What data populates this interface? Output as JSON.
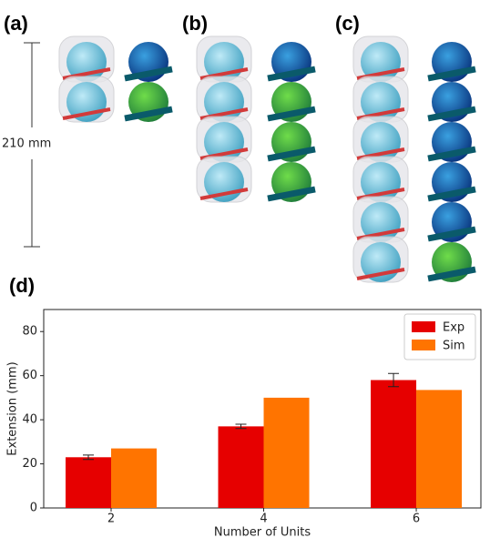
{
  "figure": {
    "panel_labels": [
      "(a)",
      "(b)",
      "(c)",
      "(d)"
    ],
    "scale_label": "210 mm"
  },
  "chart_data": {
    "type": "bar",
    "categories": [
      "2",
      "4",
      "6"
    ],
    "series": [
      {
        "name": "Exp",
        "color": "#e60000",
        "values": [
          23,
          37,
          58
        ],
        "errors": [
          1,
          1,
          3
        ]
      },
      {
        "name": "Sim",
        "color": "#ff7400",
        "values": [
          27,
          50,
          53.5
        ]
      }
    ],
    "x_label": "Number of Units",
    "y_label": "Extension (mm)",
    "ylim": [
      0,
      90
    ],
    "yticks": [
      0,
      20,
      40,
      60,
      80
    ],
    "legend": "upper right"
  }
}
